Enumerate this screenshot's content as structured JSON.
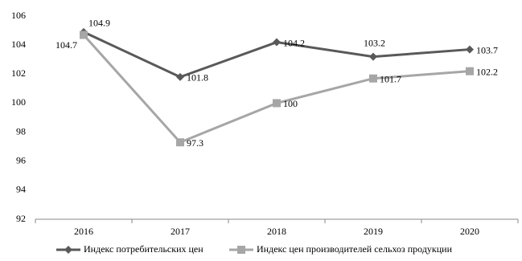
{
  "chart_data": {
    "type": "line",
    "categories": [
      "2016",
      "2017",
      "2018",
      "2019",
      "2020"
    ],
    "series": [
      {
        "name": "Индекс потребительских цен",
        "color": "#595959",
        "marker": "diamond",
        "values": [
          104.9,
          101.8,
          104.2,
          103.2,
          103.7
        ]
      },
      {
        "name": "Индекс  цен производителей сельхоз продукции",
        "color": "#a6a6a6",
        "marker": "square",
        "values": [
          104.7,
          97.3,
          100,
          101.7,
          102.2
        ]
      }
    ],
    "ylim": [
      92,
      106
    ],
    "yticks": [
      92,
      94,
      96,
      98,
      100,
      102,
      104,
      106
    ],
    "grid": false,
    "legend": "bottom"
  }
}
